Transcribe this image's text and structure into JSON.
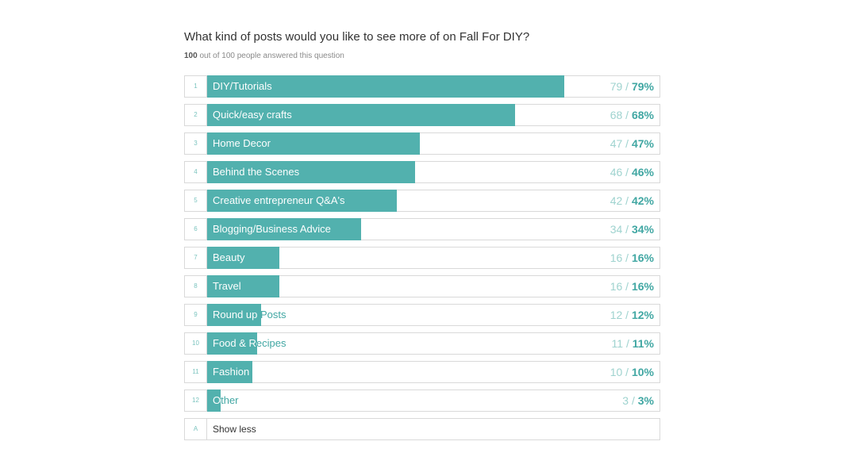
{
  "question": "What kind of posts would you like to see more of on Fall For DIY?",
  "answered": {
    "count": "100",
    "rest": " out of 100 people answered this question"
  },
  "colors": {
    "bar": "#52b1ae",
    "accent": "#41a7a3",
    "muted": "#9fd3cf"
  },
  "chart_data": {
    "type": "bar",
    "orientation": "horizontal",
    "title": "What kind of posts would you like to see more of on Fall For DIY?",
    "categories": [
      "DIY/Tutorials",
      "Quick/easy crafts",
      "Home Decor",
      "Behind the Scenes",
      "Creative entrepreneur Q&A's",
      "Blogging/Business Advice",
      "Beauty",
      "Travel",
      "Round up Posts",
      "Food & Recipes",
      "Fashion",
      "Other"
    ],
    "counts": [
      79,
      68,
      47,
      46,
      42,
      34,
      16,
      16,
      12,
      11,
      10,
      3
    ],
    "percents": [
      79,
      68,
      47,
      46,
      42,
      34,
      16,
      16,
      12,
      11,
      10,
      3
    ],
    "xlim": [
      0,
      100
    ]
  },
  "rows": [
    {
      "index": "1",
      "label": "DIY/Tutorials",
      "count": "79",
      "sep": " / ",
      "percent": "79%"
    },
    {
      "index": "2",
      "label": "Quick/easy crafts",
      "count": "68",
      "sep": " / ",
      "percent": "68%"
    },
    {
      "index": "3",
      "label": "Home Decor",
      "count": "47",
      "sep": " / ",
      "percent": "47%"
    },
    {
      "index": "4",
      "label": "Behind the Scenes",
      "count": "46",
      "sep": " / ",
      "percent": "46%"
    },
    {
      "index": "5",
      "label": "Creative entrepreneur Q&A's",
      "count": "42",
      "sep": " / ",
      "percent": "42%"
    },
    {
      "index": "6",
      "label": "Blogging/Business Advice",
      "count": "34",
      "sep": " / ",
      "percent": "34%"
    },
    {
      "index": "7",
      "label": "Beauty",
      "count": "16",
      "sep": " / ",
      "percent": "16%"
    },
    {
      "index": "8",
      "label": "Travel",
      "count": "16",
      "sep": " / ",
      "percent": "16%"
    },
    {
      "index": "9",
      "label": "Round up Posts",
      "count": "12",
      "sep": " / ",
      "percent": "12%"
    },
    {
      "index": "10",
      "label": "Food & Recipes",
      "count": "11",
      "sep": " / ",
      "percent": "11%"
    },
    {
      "index": "11",
      "label": "Fashion",
      "count": "10",
      "sep": " / ",
      "percent": "10%"
    },
    {
      "index": "12",
      "label": "Other",
      "count": "3",
      "sep": " / ",
      "percent": "3%"
    }
  ],
  "show_less": {
    "index": "A",
    "label": "Show less"
  }
}
